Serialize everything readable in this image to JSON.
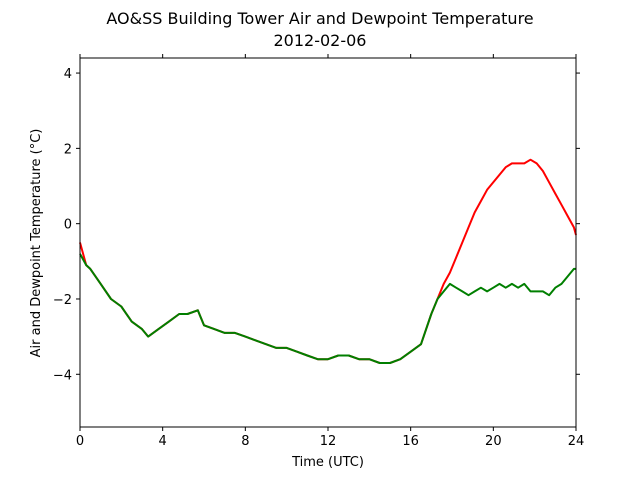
{
  "chart_data": {
    "type": "line",
    "title": "AO&SS Building Tower Air and Dewpoint Temperature",
    "subtitle": "2012-02-06",
    "xlabel": "Time (UTC)",
    "ylabel": "Air and Dewpoint Temperature (°C)",
    "xlim": [
      0,
      24
    ],
    "ylim": [
      -5.4,
      4.4
    ],
    "xticks": [
      0,
      4,
      8,
      12,
      16,
      20,
      24
    ],
    "yticks": [
      -4,
      -2,
      0,
      2,
      4
    ],
    "grid": false,
    "series": [
      {
        "color": "#ff0000",
        "x": [
          0,
          0.3,
          0.5,
          1.0,
          1.5,
          2.0,
          2.5,
          3.0,
          3.3,
          3.8,
          4.3,
          4.8,
          5.2,
          5.7,
          6.0,
          6.5,
          7.0,
          7.5,
          8.0,
          8.5,
          9.0,
          9.5,
          10.0,
          10.5,
          11.0,
          11.5,
          12.0,
          12.5,
          13.0,
          13.5,
          14.0,
          14.5,
          15.0,
          15.5,
          16.0,
          16.5,
          17.0,
          17.3,
          17.6,
          17.9,
          18.2,
          18.5,
          18.8,
          19.1,
          19.4,
          19.7,
          20.0,
          20.3,
          20.6,
          20.9,
          21.2,
          21.5,
          21.8,
          22.1,
          22.4,
          22.7,
          23.0,
          23.3,
          23.6,
          23.9,
          24.0
        ],
        "y": [
          -0.5,
          -1.1,
          -1.2,
          -1.6,
          -2.0,
          -2.2,
          -2.6,
          -2.8,
          -3.0,
          -2.8,
          -2.6,
          -2.4,
          -2.4,
          -2.3,
          -2.7,
          -2.8,
          -2.9,
          -2.9,
          -3.0,
          -3.1,
          -3.2,
          -3.3,
          -3.3,
          -3.4,
          -3.5,
          -3.6,
          -3.6,
          -3.5,
          -3.5,
          -3.6,
          -3.6,
          -3.7,
          -3.7,
          -3.6,
          -3.4,
          -3.2,
          -2.4,
          -2.0,
          -1.6,
          -1.3,
          -0.9,
          -0.5,
          -0.1,
          0.3,
          0.6,
          0.9,
          1.1,
          1.3,
          1.5,
          1.6,
          1.6,
          1.6,
          1.7,
          1.6,
          1.4,
          1.1,
          0.8,
          0.5,
          0.2,
          -0.1,
          -0.3
        ]
      },
      {
        "color": "#007f00",
        "x": [
          0,
          0.3,
          0.5,
          1.0,
          1.5,
          2.0,
          2.5,
          3.0,
          3.3,
          3.8,
          4.3,
          4.8,
          5.2,
          5.7,
          6.0,
          6.5,
          7.0,
          7.5,
          8.0,
          8.5,
          9.0,
          9.5,
          10.0,
          10.5,
          11.0,
          11.5,
          12.0,
          12.5,
          13.0,
          13.5,
          14.0,
          14.5,
          15.0,
          15.5,
          16.0,
          16.5,
          17.0,
          17.3,
          17.6,
          17.9,
          18.2,
          18.5,
          18.8,
          19.1,
          19.4,
          19.7,
          20.0,
          20.3,
          20.6,
          20.9,
          21.2,
          21.5,
          21.8,
          22.1,
          22.4,
          22.7,
          23.0,
          23.3,
          23.6,
          23.9,
          24.0
        ],
        "y": [
          -0.8,
          -1.1,
          -1.2,
          -1.6,
          -2.0,
          -2.2,
          -2.6,
          -2.8,
          -3.0,
          -2.8,
          -2.6,
          -2.4,
          -2.4,
          -2.3,
          -2.7,
          -2.8,
          -2.9,
          -2.9,
          -3.0,
          -3.1,
          -3.2,
          -3.3,
          -3.3,
          -3.4,
          -3.5,
          -3.6,
          -3.6,
          -3.5,
          -3.5,
          -3.6,
          -3.6,
          -3.7,
          -3.7,
          -3.6,
          -3.4,
          -3.2,
          -2.4,
          -2.0,
          -1.8,
          -1.6,
          -1.7,
          -1.8,
          -1.9,
          -1.8,
          -1.7,
          -1.8,
          -1.7,
          -1.6,
          -1.7,
          -1.6,
          -1.7,
          -1.6,
          -1.8,
          -1.8,
          -1.8,
          -1.9,
          -1.7,
          -1.6,
          -1.4,
          -1.2,
          -1.2
        ]
      }
    ]
  }
}
